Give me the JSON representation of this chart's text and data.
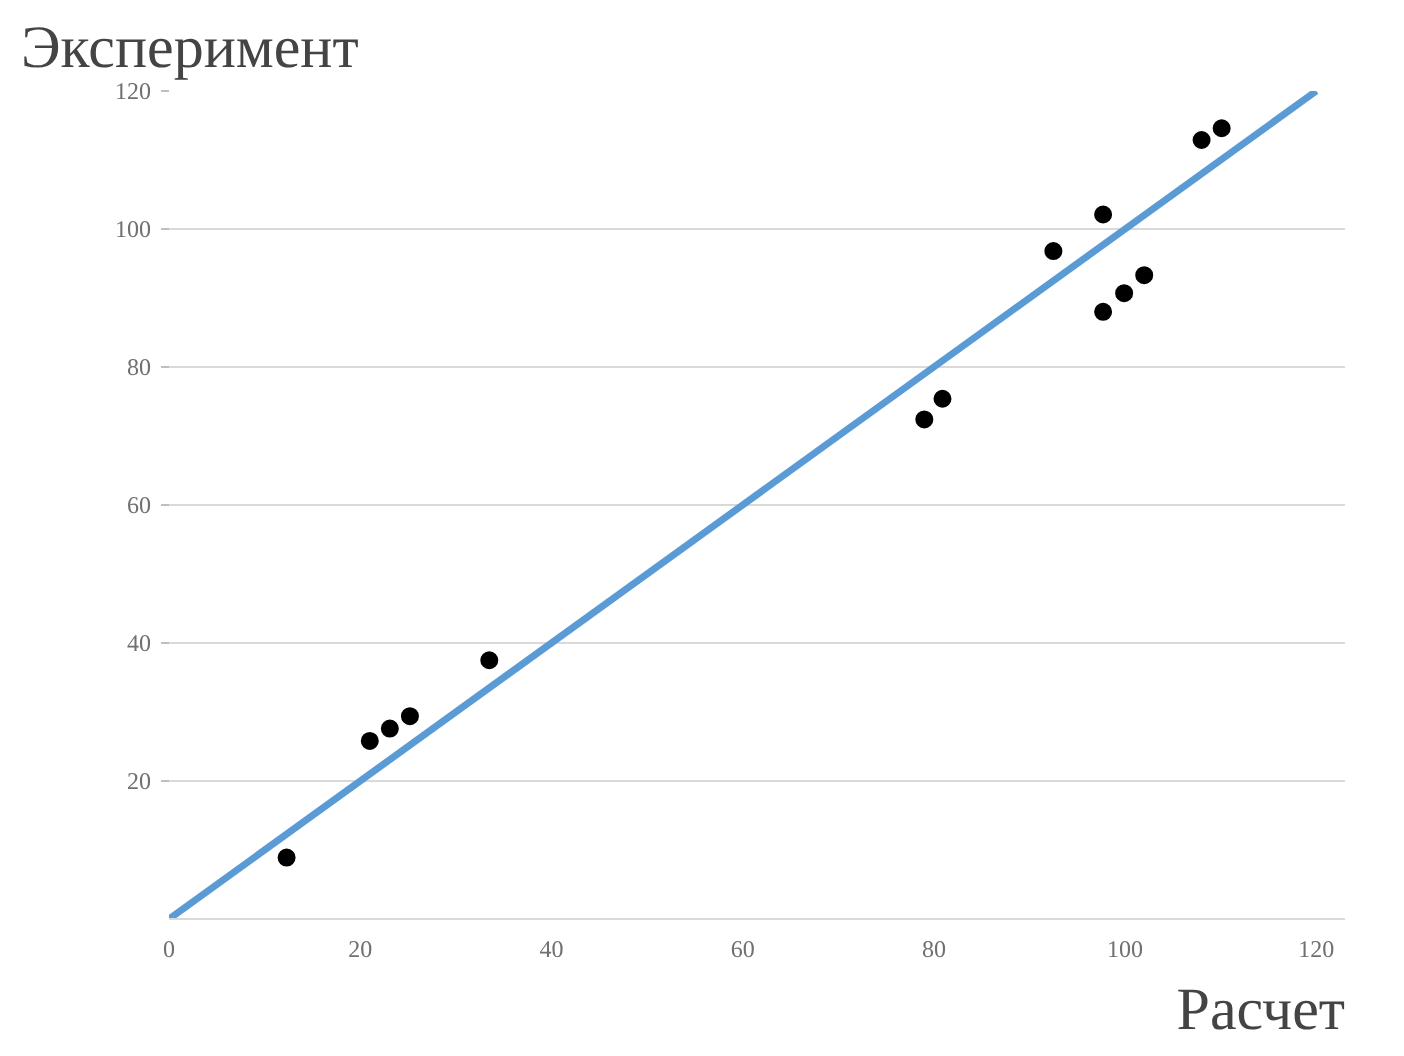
{
  "chart_data": {
    "type": "scatter",
    "xlabel": "Расчет",
    "ylabel": "Эксперимент",
    "xlim": [
      0,
      123
    ],
    "ylim": [
      0,
      120
    ],
    "xticks": [
      0,
      20,
      40,
      60,
      80,
      100,
      120
    ],
    "yticks": [
      20,
      40,
      60,
      80,
      100,
      120
    ],
    "grid": "y",
    "series": [
      {
        "marker": "circle",
        "color": "#000000",
        "x": [
          12.3,
          21,
          23.1,
          25.2,
          33.5,
          79,
          80.9,
          92.5,
          97.7,
          97.7,
          99.9,
          102,
          108,
          110.1
        ],
        "values": [
          8.9,
          25.8,
          27.6,
          29.4,
          37.5,
          72.4,
          75.4,
          96.8,
          102.1,
          88,
          90.7,
          93.3,
          112.9,
          114.6
        ]
      },
      {
        "type": "line",
        "color": "#5b9bd5",
        "x": [
          0,
          120
        ],
        "values": [
          0,
          120
        ]
      }
    ]
  }
}
